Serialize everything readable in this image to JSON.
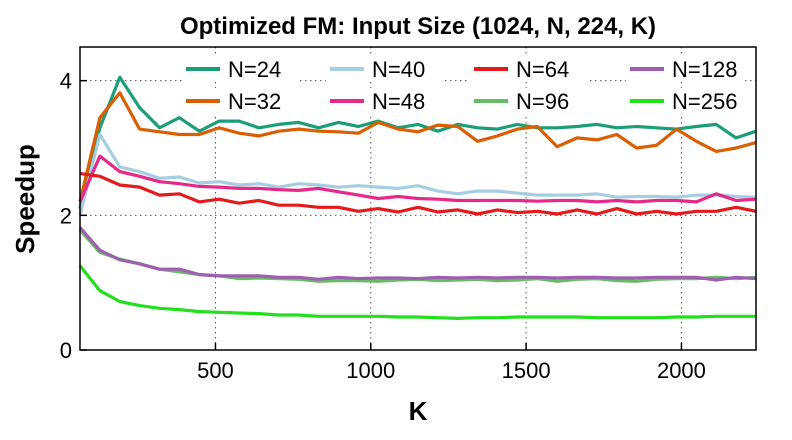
{
  "chart_data": {
    "type": "line",
    "title": "Optimized FM: Input Size (1024, N, 224, K)",
    "xlabel": "K",
    "ylabel": "Speedup",
    "xlim": [
      64,
      2240
    ],
    "ylim": [
      0,
      4.5
    ],
    "xticks": [
      500,
      1000,
      1500,
      2000
    ],
    "yticks": [
      0,
      2,
      4
    ],
    "grid": true,
    "legend_position": "top",
    "x": [
      64,
      128,
      192,
      256,
      320,
      384,
      448,
      512,
      576,
      640,
      704,
      768,
      832,
      896,
      960,
      1024,
      1088,
      1152,
      1216,
      1280,
      1344,
      1408,
      1472,
      1536,
      1600,
      1664,
      1728,
      1792,
      1856,
      1920,
      1984,
      2048,
      2112,
      2176,
      2240
    ],
    "series": [
      {
        "name": "N=24",
        "color": "#1b9e77",
        "values": [
          2.1,
          3.3,
          4.05,
          3.6,
          3.3,
          3.45,
          3.25,
          3.4,
          3.4,
          3.3,
          3.35,
          3.38,
          3.3,
          3.38,
          3.32,
          3.4,
          3.3,
          3.35,
          3.25,
          3.35,
          3.3,
          3.28,
          3.35,
          3.3,
          3.3,
          3.32,
          3.35,
          3.3,
          3.32,
          3.3,
          3.28,
          3.32,
          3.35,
          3.15,
          3.25
        ]
      },
      {
        "name": "N=32",
        "color": "#d95f02",
        "values": [
          2.2,
          3.45,
          3.82,
          3.28,
          3.24,
          3.2,
          3.2,
          3.3,
          3.22,
          3.18,
          3.25,
          3.28,
          3.25,
          3.24,
          3.22,
          3.38,
          3.28,
          3.24,
          3.34,
          3.32,
          3.1,
          3.18,
          3.28,
          3.32,
          3.02,
          3.15,
          3.12,
          3.2,
          3.0,
          3.04,
          3.28,
          3.1,
          2.95,
          3.0,
          3.08
        ]
      },
      {
        "name": "N=40",
        "color": "#a6cee3",
        "values": [
          2.0,
          3.2,
          2.72,
          2.65,
          2.55,
          2.57,
          2.48,
          2.5,
          2.45,
          2.47,
          2.42,
          2.47,
          2.45,
          2.42,
          2.44,
          2.42,
          2.4,
          2.44,
          2.36,
          2.32,
          2.36,
          2.36,
          2.33,
          2.3,
          2.3,
          2.3,
          2.32,
          2.27,
          2.28,
          2.28,
          2.27,
          2.3,
          2.3,
          2.28,
          2.27
        ]
      },
      {
        "name": "N=48",
        "color": "#e7298a",
        "values": [
          2.2,
          2.88,
          2.65,
          2.58,
          2.5,
          2.47,
          2.43,
          2.42,
          2.4,
          2.4,
          2.38,
          2.37,
          2.4,
          2.35,
          2.3,
          2.25,
          2.28,
          2.25,
          2.24,
          2.22,
          2.22,
          2.22,
          2.22,
          2.21,
          2.22,
          2.22,
          2.2,
          2.22,
          2.2,
          2.22,
          2.22,
          2.2,
          2.32,
          2.22,
          2.24
        ]
      },
      {
        "name": "N=64",
        "color": "#e41a1c",
        "values": [
          2.62,
          2.58,
          2.45,
          2.42,
          2.3,
          2.32,
          2.2,
          2.24,
          2.18,
          2.22,
          2.15,
          2.15,
          2.12,
          2.12,
          2.06,
          2.1,
          2.05,
          2.12,
          2.05,
          2.08,
          2.02,
          2.08,
          2.04,
          2.06,
          2.02,
          2.08,
          2.02,
          2.1,
          2.02,
          2.06,
          2.02,
          2.06,
          2.06,
          2.12,
          2.06
        ]
      },
      {
        "name": "N=96",
        "color": "#66bd63",
        "values": [
          1.78,
          1.45,
          1.35,
          1.28,
          1.2,
          1.16,
          1.12,
          1.1,
          1.06,
          1.07,
          1.06,
          1.05,
          1.02,
          1.03,
          1.03,
          1.02,
          1.04,
          1.05,
          1.03,
          1.04,
          1.05,
          1.03,
          1.04,
          1.06,
          1.02,
          1.05,
          1.06,
          1.03,
          1.02,
          1.05,
          1.06,
          1.06,
          1.08,
          1.06,
          1.08
        ]
      },
      {
        "name": "N=128",
        "color": "#9e5fb0",
        "values": [
          1.82,
          1.48,
          1.34,
          1.28,
          1.2,
          1.2,
          1.12,
          1.1,
          1.1,
          1.1,
          1.08,
          1.08,
          1.05,
          1.08,
          1.06,
          1.07,
          1.07,
          1.06,
          1.08,
          1.07,
          1.08,
          1.07,
          1.08,
          1.08,
          1.07,
          1.08,
          1.08,
          1.07,
          1.07,
          1.08,
          1.08,
          1.08,
          1.04,
          1.08,
          1.06
        ]
      },
      {
        "name": "N=256",
        "color": "#22e01c",
        "values": [
          1.25,
          0.88,
          0.72,
          0.66,
          0.62,
          0.6,
          0.57,
          0.56,
          0.55,
          0.54,
          0.52,
          0.52,
          0.5,
          0.5,
          0.5,
          0.5,
          0.49,
          0.49,
          0.48,
          0.47,
          0.48,
          0.48,
          0.49,
          0.49,
          0.49,
          0.49,
          0.48,
          0.48,
          0.48,
          0.48,
          0.49,
          0.49,
          0.5,
          0.5,
          0.5
        ]
      }
    ]
  }
}
